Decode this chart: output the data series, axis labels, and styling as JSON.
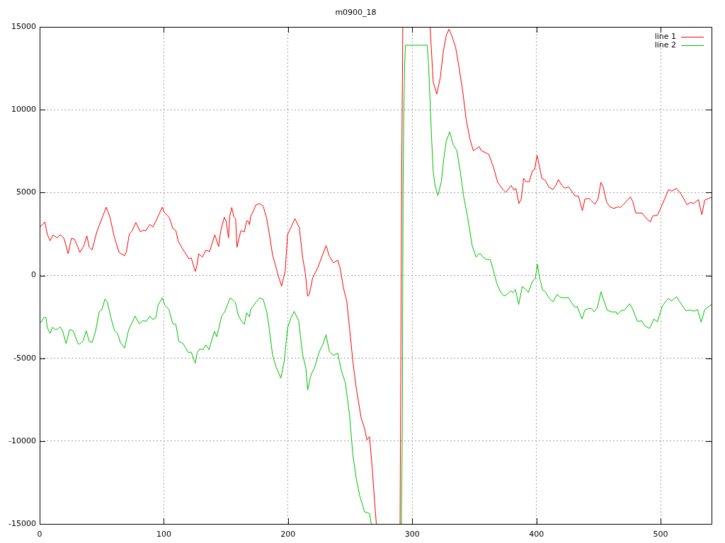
{
  "chart_data": {
    "type": "line",
    "title": "m0900_18",
    "xlim": [
      0,
      541
    ],
    "xticks": [
      0,
      100,
      200,
      300,
      400,
      500
    ],
    "ylim": [
      -15000,
      15000
    ],
    "yticks": [
      -15000,
      -10000,
      -5000,
      0,
      5000,
      10000,
      15000
    ],
    "grid": true,
    "legend": "top right",
    "series": [
      {
        "name": "line 1",
        "color": "#ff0000",
        "x": [
          0,
          4.2,
          6.1,
          8.4,
          10.8,
          14.1,
          16.5,
          19.4,
          21.3,
          23,
          25.5,
          27.9,
          30.8,
          32.3,
          35.5,
          38,
          39.9,
          42.2,
          46,
          53.6,
          56.5,
          60.3,
          64,
          68.4,
          69.8,
          72.2,
          74.5,
          77.4,
          81.2,
          83.1,
          85.5,
          88.8,
          91.1,
          93.5,
          98.7,
          100.2,
          104.5,
          107.2,
          109.7,
          111.6,
          115.4,
          117.3,
          120.2,
          122,
          125.3,
          126.4,
          128.1,
          131,
          133.8,
          136.9,
          141,
          144.1,
          145.8,
          148.7,
          150.2,
          152.1,
          153,
          154.7,
          156.3,
          157.8,
          158.9,
          160.4,
          162,
          164.8,
          166.7,
          168,
          169,
          169.9,
          174.3,
          177.2,
          180,
          182.9,
          184.8,
          187.5,
          191.5,
          194.8,
          197.7,
          199.6,
          202.3,
          205.5,
          209.1,
          211.8,
          213.9,
          215.8,
          217.1,
          219.8,
          223.9,
          227.9,
          230.6,
          233.3,
          236.6,
          240,
          241.9,
          244.6,
          247.3,
          249.5,
          252.2,
          254.9,
          258.9,
          261.6,
          263.5,
          265.6,
          267.8,
          269.7,
          271.1,
          280,
          290.2,
          291.6,
          292.4,
          300,
          314.4,
          316.9,
          319.8,
          322.6,
          325,
          327.4,
          329.6,
          332.2,
          334.9,
          337.8,
          340.7,
          343.5,
          346.4,
          349.2,
          350.8,
          354,
          355.5,
          361.6,
          365.4,
          368.8,
          373,
          375.4,
          379.6,
          381.9,
          383.4,
          385.9,
          387.8,
          389.7,
          391.6,
          394.3,
          396.8,
          398.6,
          400.5,
          402.1,
          404.4,
          407.2,
          410,
          413.3,
          415.7,
          417.6,
          420.5,
          423,
          425.8,
          431,
          433.8,
          437,
          439.1,
          442.4,
          444.3,
          447.1,
          449.6,
          451.9,
          453.8,
          456.6,
          459.5,
          462.3,
          466.1,
          467.6,
          469.9,
          475.6,
          477.5,
          480,
          485.1,
          488.9,
          491.7,
          493.7,
          497.4,
          501.3,
          506.4,
          508.9,
          512.7,
          516.5,
          521.3,
          524.1,
          526.6,
          530.4,
          533.2,
          535.5,
          541
        ],
        "values": [
          2900,
          3230,
          2490,
          2100,
          2440,
          2270,
          2460,
          2270,
          1780,
          1310,
          2230,
          2200,
          1710,
          1390,
          1780,
          2390,
          1710,
          1540,
          2630,
          4120,
          3550,
          2270,
          1390,
          1190,
          1420,
          2490,
          2700,
          3200,
          2630,
          2730,
          2700,
          3080,
          2910,
          3270,
          4120,
          3840,
          3480,
          2840,
          2700,
          2060,
          1570,
          1350,
          1000,
          1070,
          240,
          500,
          1310,
          1110,
          1520,
          1450,
          2460,
          1740,
          2700,
          3510,
          3270,
          2270,
          3550,
          4100,
          3550,
          3410,
          1710,
          2200,
          2700,
          2630,
          3300,
          3270,
          3060,
          3550,
          4270,
          4340,
          4190,
          3410,
          2570,
          1260,
          150,
          -650,
          260,
          2470,
          2880,
          3440,
          2880,
          1060,
          150,
          -1260,
          -1160,
          -150,
          460,
          1260,
          1800,
          1160,
          760,
          920,
          460,
          -750,
          -1560,
          -3170,
          -5190,
          -6800,
          -8620,
          -9230,
          -9930,
          -9730,
          -11650,
          -13660,
          -15000,
          null,
          -15000,
          7100,
          15000,
          null,
          15000,
          11660,
          10950,
          11950,
          13510,
          14500,
          14870,
          14400,
          13790,
          12510,
          11090,
          9390,
          8250,
          7540,
          7610,
          7780,
          7540,
          7320,
          6540,
          5620,
          5190,
          5020,
          5430,
          5150,
          5260,
          4340,
          4620,
          5860,
          5660,
          5660,
          6330,
          6400,
          7250,
          6690,
          5860,
          5730,
          5330,
          5190,
          5430,
          5790,
          5430,
          5260,
          5360,
          4810,
          4790,
          3910,
          4620,
          4650,
          4510,
          4300,
          4620,
          5620,
          5330,
          4410,
          4120,
          4050,
          4150,
          4100,
          4270,
          4740,
          4480,
          3770,
          3770,
          3410,
          3230,
          3600,
          3630,
          4270,
          5190,
          5090,
          5260,
          4910,
          4270,
          4410,
          4340,
          4580,
          3670,
          4550,
          4720
        ]
      },
      {
        "name": "line 2",
        "color": "#00c000",
        "x": [
          0,
          1.3,
          3.2,
          5.1,
          6.1,
          8.4,
          10.3,
          12.7,
          14.6,
          16.5,
          18.4,
          21.3,
          24.1,
          27,
          30.8,
          32.3,
          35,
          37.5,
          39.9,
          42.2,
          45.1,
          47.9,
          50.2,
          52.6,
          54.6,
          57.4,
          60.3,
          62.7,
          65,
          68.4,
          71.7,
          74.5,
          76.8,
          80.2,
          83.1,
          85.9,
          88.8,
          91.1,
          93.5,
          95.4,
          98.7,
          100.8,
          104,
          107.2,
          109.7,
          112,
          115.4,
          117.3,
          119.8,
          122,
          125.3,
          126.8,
          128.7,
          131.5,
          133.8,
          136.3,
          140.7,
          142.6,
          146.7,
          149,
          153.4,
          155.3,
          157.6,
          159.7,
          162,
          164.8,
          166.7,
          169,
          169.9,
          174.3,
          177.2,
          180,
          182.9,
          184.8,
          187.5,
          190.2,
          194.2,
          196.9,
          199.6,
          202.3,
          205,
          208.5,
          211.8,
          214.4,
          215.8,
          218.5,
          221.2,
          225.2,
          227.9,
          230.6,
          233.3,
          236.6,
          240,
          242.8,
          246.2,
          249.5,
          252.2,
          254.9,
          257.6,
          261.6,
          265.6,
          267,
          280,
          291.3,
          292,
          292.6,
          293.2,
          293.8,
          294.5,
          312.1,
          313.1,
          314.4,
          315.6,
          316.9,
          318.4,
          320.7,
          323.5,
          325.5,
          327.4,
          330.2,
          333,
          335.9,
          338.7,
          341.6,
          344.5,
          348.3,
          351.5,
          354.4,
          356.8,
          359.7,
          362.9,
          365.4,
          368.2,
          371.1,
          373.9,
          376.4,
          379.2,
          381.1,
          383.1,
          385.7,
          388.6,
          391.1,
          393.5,
          396.8,
          399.1,
          400.8,
          402.5,
          405,
          407.2,
          410,
          413.3,
          416.7,
          419,
          423,
          425.8,
          428.1,
          431,
          432.8,
          436.7,
          438.9,
          441.9,
          444.3,
          446.5,
          449,
          451.9,
          453.8,
          457,
          460.4,
          464.2,
          465.1,
          468,
          470.8,
          475,
          477.1,
          481.3,
          484.7,
          487.4,
          491.1,
          494.6,
          497.4,
          501.3,
          506,
          508.9,
          512.7,
          516.5,
          520.3,
          524.1,
          526.6,
          529.8,
          532.6,
          535.5,
          541
        ],
        "values": [
          -2770,
          -2820,
          -2560,
          -2530,
          -3130,
          -3490,
          -3130,
          -3270,
          -3230,
          -3100,
          -3340,
          -4120,
          -3270,
          -3340,
          -4100,
          -4150,
          -3950,
          -3340,
          -3980,
          -4050,
          -3340,
          -2200,
          -2060,
          -1420,
          -1630,
          -2560,
          -3340,
          -3490,
          -4050,
          -4380,
          -3270,
          -2840,
          -2450,
          -2910,
          -2730,
          -2770,
          -2450,
          -2660,
          -2560,
          -1780,
          -1350,
          -1780,
          -2060,
          -2910,
          -2960,
          -3980,
          -4100,
          -4340,
          -4660,
          -4620,
          -5300,
          -4690,
          -4440,
          -4480,
          -4190,
          -4480,
          -3380,
          -3700,
          -2420,
          -2200,
          -1350,
          -1460,
          -1630,
          -2350,
          -2700,
          -2950,
          -2250,
          -2500,
          -2050,
          -1600,
          -1350,
          -1450,
          -2200,
          -3170,
          -4790,
          -5490,
          -6200,
          -5190,
          -3170,
          -2570,
          -2170,
          -2730,
          -4790,
          -5600,
          -6910,
          -6000,
          -5600,
          -4590,
          -4190,
          -3580,
          -4590,
          -4830,
          -4690,
          -5700,
          -6500,
          -8420,
          -10840,
          -12250,
          -13260,
          -14270,
          -14370,
          -15000,
          null,
          -15000,
          -9200,
          5100,
          9800,
          12500,
          13900,
          13900,
          12800,
          10520,
          8250,
          6260,
          5400,
          4830,
          5690,
          7110,
          8110,
          8670,
          7890,
          7540,
          6260,
          4690,
          3550,
          1780,
          1110,
          1350,
          1110,
          970,
          950,
          290,
          -500,
          -990,
          -1240,
          -1140,
          -930,
          -1040,
          -850,
          -1750,
          -670,
          -820,
          -1020,
          -350,
          -180,
          680,
          -140,
          -880,
          -990,
          -1350,
          -1590,
          -1140,
          -1320,
          -1350,
          -1320,
          -1630,
          -1920,
          -1880,
          -2630,
          -2100,
          -1990,
          -1990,
          -2200,
          -1960,
          -990,
          -1420,
          -2100,
          -2200,
          -2200,
          -2350,
          -2130,
          -2100,
          -1710,
          -1960,
          -2770,
          -2740,
          -3060,
          -3200,
          -2630,
          -2800,
          -1850,
          -1390,
          -1540,
          -1280,
          -1710,
          -2130,
          -2090,
          -2160,
          -2060,
          -2820,
          -2060,
          -1750
        ]
      }
    ]
  }
}
